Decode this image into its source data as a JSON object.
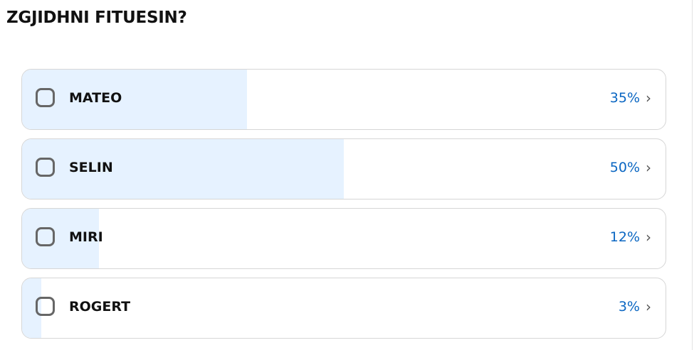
{
  "poll": {
    "title": "ZGJIDHNI FITUESIN?",
    "options": [
      {
        "label": "MATEO",
        "percent_text": "35%",
        "percent": 35
      },
      {
        "label": "SELIN",
        "percent_text": "50%",
        "percent": 50
      },
      {
        "label": "MIRI",
        "percent_text": "12%",
        "percent": 12
      },
      {
        "label": "ROGERT",
        "percent_text": "3%",
        "percent": 3
      }
    ]
  },
  "colors": {
    "fill": "#e6f2ff",
    "percent": "#0a66c2"
  }
}
